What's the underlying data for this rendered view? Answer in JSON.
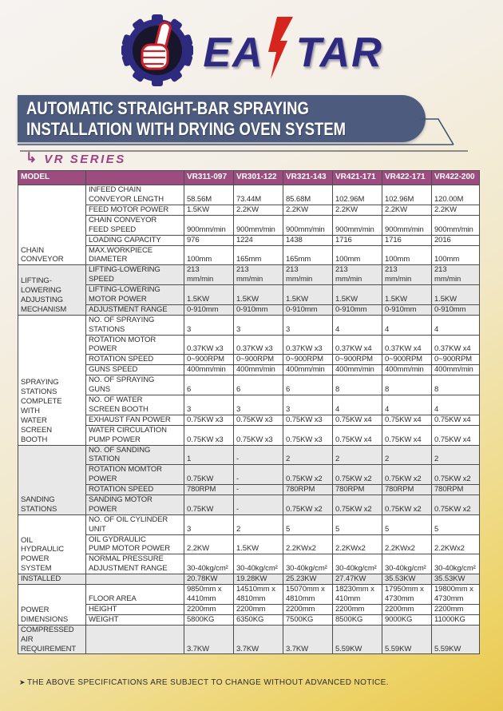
{
  "brand": {
    "wordmark_left": "EA",
    "wordmark_right": "TAR",
    "lightning_icon": "lightning-bolt",
    "gear_icon": "gear-thumbs-up"
  },
  "banner": {
    "line1": "AUTOMATIC STRAIGHT-BAR SPRAYING",
    "line2": "INSTALLATION WITH DRYING OVEN SYSTEM"
  },
  "series": {
    "arrow": "↳",
    "label": "VR SERIES"
  },
  "table": {
    "model_header": "MODEL",
    "models": [
      "VR311-097",
      "VR301-122",
      "VR321-143",
      "VR421-171",
      "VR422-171",
      "VR422-200"
    ],
    "sections": [
      {
        "label": "CHAIN\nCONVEYOR",
        "shade": false,
        "rows": [
          {
            "param": "INFEED CHAIN\nCONVEYOR LENGTH",
            "values": [
              "58.56M",
              "73.44M",
              "85.68M",
              "102.96M",
              "102.96M",
              "120.00M"
            ]
          },
          {
            "param": "FEED MOTOR POWER",
            "values": [
              "1.5KW",
              "2.2KW",
              "2.2KW",
              "2.2KW",
              "2.2KW",
              "2.2KW"
            ]
          },
          {
            "param": "CHAIN CONVEYOR\nFEED SPEED",
            "values": [
              "900mm/min",
              "900mm/min",
              "900mm/min",
              "900mm/min",
              "900mm/min",
              "900mm/min"
            ]
          },
          {
            "param": "LOADING CAPACITY",
            "values": [
              "976",
              "1224",
              "1438",
              "1716",
              "1716",
              "2016"
            ]
          },
          {
            "param": "MAX.WORKPIECE\nDIAMETER",
            "values": [
              "100mm",
              "165mm",
              "165mm",
              "100mm",
              "100mm",
              "100mm"
            ]
          }
        ]
      },
      {
        "label": "LIFTING-\nLOWERING\nADJUSTING\nMECHANISM",
        "shade": true,
        "rows": [
          {
            "param": "LIFTING-LOWERING\nSPEED",
            "va": "top",
            "values": [
              "213\nmm/min",
              "213\nmm/min",
              "213\nmm/min",
              "213\nmm/min",
              "213\nmm/min",
              "213\nmm/min"
            ]
          },
          {
            "param": "LIFTING-LOWERING\nMOTOR POWER",
            "values": [
              "1.5KW",
              "1.5KW",
              "1.5KW",
              "1.5KW",
              "1.5KW",
              "1.5KW"
            ]
          },
          {
            "param": "ADJUSTMENT RANGE",
            "values": [
              "0-910mm",
              "0-910mm",
              "0-910mm",
              "0-910mm",
              "0-910mm",
              "0-910mm"
            ]
          }
        ]
      },
      {
        "label": "SPRAYING\nSTATIONS\nCOMPLETE\nWITH\nWATER\nSCREEN\nBOOTH",
        "shade": false,
        "rows": [
          {
            "param": "NO. OF SPRAYING\nSTATIONS",
            "values": [
              "3",
              "3",
              "3",
              "4",
              "4",
              "4"
            ]
          },
          {
            "param": "ROTATION MOTOR\nPOWER",
            "values": [
              "0.37KW x3",
              "0.37KW x3",
              "0.37KW x3",
              "0.37KW x4",
              "0.37KW x4",
              "0.37KW x4"
            ]
          },
          {
            "param": "ROTATION SPEED",
            "values": [
              "0~900RPM",
              "0~900RPM",
              "0~900RPM",
              "0~900RPM",
              "0~900RPM",
              "0~900RPM"
            ]
          },
          {
            "param": "GUNS SPEED",
            "values": [
              "400mm/min",
              "400mm/min",
              "400mm/min",
              "400mm/min",
              "400mm/min",
              "400mm/min"
            ]
          },
          {
            "param": "NO. OF SPRAYING\nGUNS",
            "va": "top",
            "values": [
              "6",
              "6",
              "6",
              "8",
              "8",
              "8"
            ]
          },
          {
            "param": "NO. OF WATER\nSCREEN BOOTH",
            "values": [
              "3",
              "3",
              "3",
              "4",
              "4",
              "4"
            ]
          },
          {
            "param": "EXHAUST FAN POWER",
            "values": [
              "0.75KW x3",
              "0.75KW x3",
              "0.75KW x3",
              "0.75KW x4",
              "0.75KW x4",
              "0.75KW x4"
            ]
          },
          {
            "param": "WATER CIRCULATION\nPUMP POWER",
            "values": [
              "0.75KW x3",
              "0.75KW x3",
              "0.75KW x3",
              "0.75KW x4",
              "0.75KW x4",
              "0.75KW x4"
            ]
          }
        ]
      },
      {
        "label": "SANDING\nSTATIONS",
        "shade": true,
        "rows": [
          {
            "param": "NO. OF SANDING\nSTATION",
            "values": [
              "1",
              "-",
              "2",
              "2",
              "2",
              "2"
            ]
          },
          {
            "param": "ROTATION MOMTOR\nPOWER",
            "values": [
              "0.75KW",
              "-",
              "0.75KW x2",
              "0.75KW x2",
              "0.75KW x2",
              "0.75KW x2"
            ]
          },
          {
            "param": "ROTATION SPEED",
            "values": [
              "780RPM",
              "-",
              "780RPM",
              "780RPM",
              "780RPM",
              "780RPM"
            ]
          },
          {
            "param": "SANDING MOTOR\nPOWER",
            "values": [
              "0.75KW",
              "-",
              "0.75KW x2",
              "0.75KW x2",
              "0.75KW x2",
              "0.75KW x2"
            ]
          }
        ]
      },
      {
        "label": "OIL\nHYDRAULIC\nPOWER\nSYSTEM",
        "shade": false,
        "rows": [
          {
            "param": "NO. OF OIL CYLINDER\nUNIT",
            "values": [
              "3",
              "2",
              "5",
              "5",
              "5",
              "5"
            ]
          },
          {
            "param": "OIL GYDRAULIC\nPUMP MOTOR POWER",
            "values": [
              "2.2KW",
              "1.5KW",
              "2.2KWx2",
              "2.2KWx2",
              "2.2KWx2",
              "2.2KWx2"
            ]
          },
          {
            "param": "NORMAL PRESSURE\nADJUSTMENT RANGE",
            "values": [
              "30-40kg/cm²",
              "30-40kg/cm²",
              "30-40kg/cm²",
              "30-40kg/cm²",
              "30-40kg/cm²",
              "30-40kg/cm²"
            ]
          }
        ]
      },
      {
        "label": "INSTALLED",
        "shade": true,
        "rows": [
          {
            "param": "",
            "values": [
              "20.78KW",
              "19.28KW",
              "25.23KW",
              "27.47KW",
              "35.53KW",
              "35.53KW"
            ]
          }
        ]
      },
      {
        "label": "POWER\nDIMENSIONS",
        "shade": false,
        "rows": [
          {
            "param": "FLOOR AREA",
            "va": "top",
            "values": [
              "9850mm x\n4410mm",
              "14510mm x\n4810mm",
              "15070mm x\n4810mm",
              "18230mm x\n410mm",
              "17950mm x\n4730mm",
              "19800mm x\n4730mm"
            ]
          },
          {
            "param": "HEIGHT",
            "values": [
              "2200mm",
              "2200mm",
              "2200mm",
              "2200mm",
              "2200mm",
              "2200mm"
            ]
          },
          {
            "param": "WEIGHT",
            "values": [
              "5800KG",
              "6350KG",
              "7500KG",
              "8500KG",
              "9000KG",
              "11000KG"
            ]
          }
        ]
      },
      {
        "label": "COMPRESSED\nAIR\nREQUIREMENT",
        "shade": true,
        "rows": [
          {
            "param": "",
            "va": "middle",
            "values": [
              "3.7KW",
              "3.7KW",
              "3.7KW",
              "5.59KW",
              "5.59KW",
              "5.59KW"
            ]
          }
        ]
      }
    ]
  },
  "footnote": {
    "bullet": "➤",
    "text": "THE ABOVE SPECIFICATIONS ARE SUBJECT TO CHANGE WITHOUT ADVANCED NOTICE."
  },
  "colors": {
    "table_header_bg": "#9c4c7e",
    "banner_bg": "#4d5c7e",
    "accent_purple": "#9d4182",
    "logo_blue": "#2e2b7e",
    "bolt_red": "#d6251d",
    "row_shade": "#e9e8e8",
    "page_yellow": "#e9c84f"
  }
}
